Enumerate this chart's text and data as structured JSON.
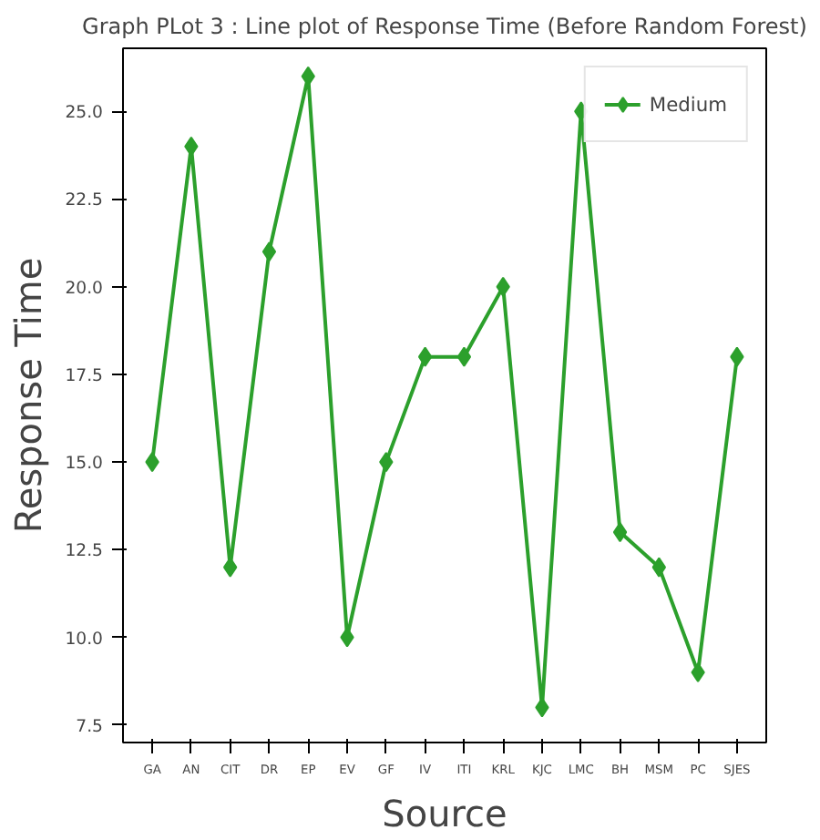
{
  "chart_data": {
    "type": "line",
    "title": "Graph PLot 3 : Line plot of Response Time (Before Random Forest)",
    "xlabel": "Source",
    "ylabel": "Response Time",
    "categories": [
      "GA",
      "AN",
      "CIT",
      "DR",
      "EP",
      "EV",
      "GF",
      "IV",
      "ITI",
      "KRL",
      "KJC",
      "LMC",
      "BH",
      "MSM",
      "PC",
      "SJES"
    ],
    "series": [
      {
        "name": "Medium",
        "color": "#2ca02c",
        "values": [
          15,
          24,
          12,
          21,
          26,
          10,
          15,
          18,
          18,
          20,
          8,
          25,
          13,
          12,
          9,
          18
        ]
      }
    ],
    "ylim": [
      7.0,
      26.8
    ],
    "yticks": [
      7.5,
      {
        "value": 10,
        "label": "10.0"
      },
      12.5,
      {
        "value": 15,
        "label": "15.0"
      },
      17.5,
      {
        "value": 20,
        "label": "20.0"
      },
      22.5,
      {
        "value": 25,
        "label": "25.0"
      }
    ],
    "grid": false,
    "legend": "top right",
    "marker": "diamond",
    "line_style": "solid"
  }
}
